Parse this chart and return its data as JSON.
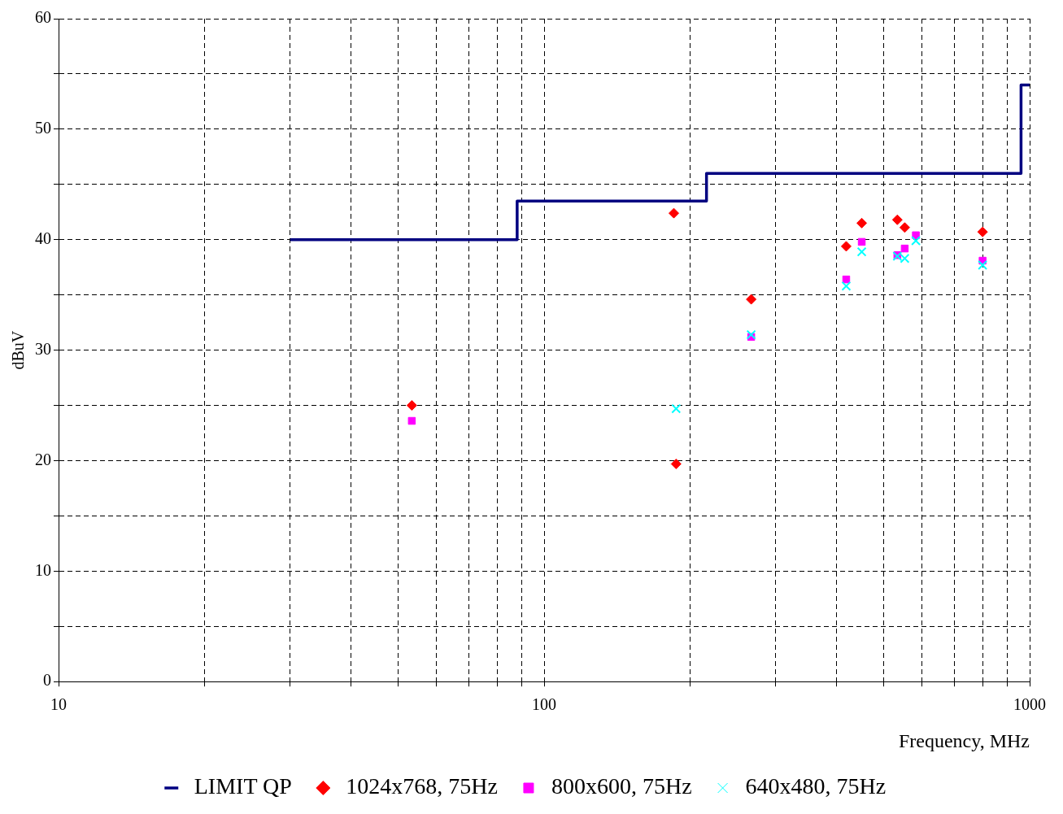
{
  "chart_data": {
    "type": "scatter",
    "xlabel": "Frequency, MHz",
    "ylabel": "dBuV",
    "log": "x",
    "xlim": [
      10,
      1000
    ],
    "ylim": [
      0,
      60
    ],
    "xticks": [
      10,
      {
        "value": 20,
        "label": null
      },
      {
        "value": 30,
        "label": null
      },
      {
        "value": 40,
        "label": null
      },
      {
        "value": 50,
        "label": null
      },
      {
        "value": 60,
        "label": null
      },
      {
        "value": 70,
        "label": null
      },
      {
        "value": 80,
        "label": null
      },
      {
        "value": 90,
        "label": null
      },
      100,
      {
        "value": 200,
        "label": null
      },
      {
        "value": 300,
        "label": null
      },
      {
        "value": 400,
        "label": null
      },
      {
        "value": 500,
        "label": null
      },
      {
        "value": 600,
        "label": null
      },
      {
        "value": 700,
        "label": null
      },
      {
        "value": 800,
        "label": null
      },
      {
        "value": 900,
        "label": null
      },
      1000
    ],
    "yticks": [
      0,
      {
        "value": 5,
        "label": null
      },
      10,
      {
        "value": 15,
        "label": null
      },
      20,
      {
        "value": 25,
        "label": null
      },
      30,
      {
        "value": 35,
        "label": null
      },
      40,
      {
        "value": 45,
        "label": null
      },
      50,
      {
        "value": 55,
        "label": null
      },
      60
    ],
    "grid": true,
    "legend": "bottom",
    "series": [
      {
        "name": "LIMIT QP",
        "type": "step",
        "color": "#000080",
        "marker": "none",
        "x": [
          30,
          88,
          216,
          960,
          1000
        ],
        "values": [
          40,
          43.5,
          46,
          54,
          54
        ]
      },
      {
        "name": "1024x768, 75Hz",
        "color": "#ff0000",
        "marker": "diamond",
        "x": [
          53.4,
          185,
          187,
          267,
          419,
          451,
          534,
          553,
          800
        ],
        "values": [
          25.0,
          42.4,
          19.7,
          34.6,
          39.4,
          41.5,
          41.8,
          41.1,
          40.7
        ]
      },
      {
        "name": "800x600, 75Hz",
        "color": "#ff00ff",
        "marker": "square",
        "x": [
          53.4,
          267,
          419,
          451,
          534,
          553,
          583,
          800
        ],
        "values": [
          23.6,
          31.2,
          36.4,
          39.8,
          38.6,
          39.2,
          40.4,
          38.1
        ]
      },
      {
        "name": "640x480, 75Hz",
        "color": "#00ffff",
        "marker": "cross",
        "x": [
          187,
          267,
          419,
          451,
          534,
          553,
          583,
          800
        ],
        "values": [
          24.7,
          31.4,
          35.8,
          38.9,
          38.5,
          38.3,
          39.9,
          37.7
        ]
      }
    ]
  }
}
